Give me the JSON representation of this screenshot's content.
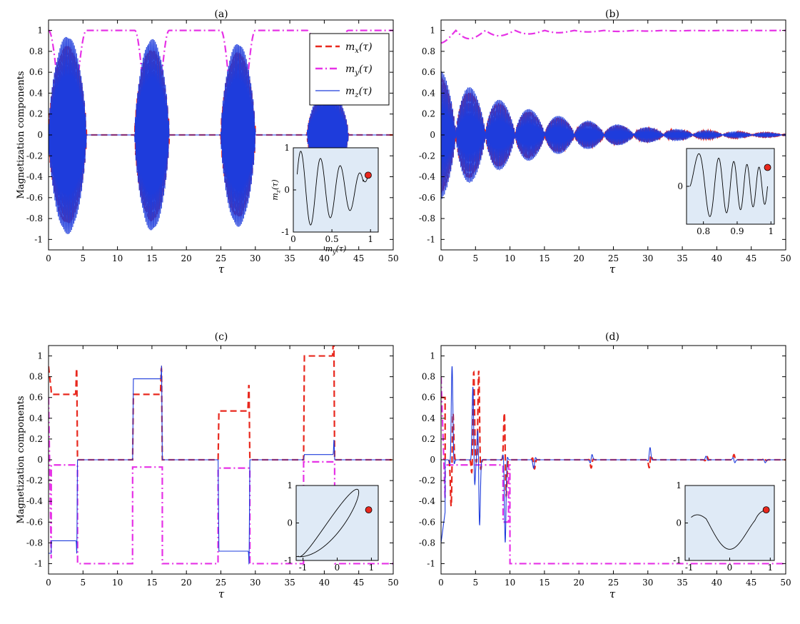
{
  "chart_data": [
    {
      "type": "line",
      "panel_label": "(a)",
      "title": "(a)",
      "xlabel": "τ",
      "ylabel": "Magnetization components",
      "xlim": [
        0,
        50
      ],
      "ylim": [
        -1.1,
        1.1
      ],
      "xticks": [
        0,
        5,
        10,
        15,
        20,
        25,
        30,
        35,
        40,
        45,
        50
      ],
      "yticks": [
        -1,
        -0.8,
        -0.6,
        -0.4,
        -0.2,
        0,
        0.2,
        0.4,
        0.6,
        0.8,
        1
      ],
      "legend": {
        "placement": "top-right",
        "entries": [
          "m_x(τ)",
          "m_y(τ)",
          "m_z(τ)"
        ]
      },
      "series_style": [
        {
          "key": "m_x",
          "color": "#e8281e",
          "dash": "dashed"
        },
        {
          "key": "m_y",
          "color": "#e632e6",
          "dash": "dash-dot"
        },
        {
          "key": "m_z",
          "color": "#1e3cdc",
          "dash": "solid"
        }
      ],
      "bursts": [
        {
          "start": 0,
          "end": 5.5,
          "amp": 0.95
        },
        {
          "start": 12.5,
          "end": 17.5,
          "amp": 0.92
        },
        {
          "start": 25,
          "end": 30,
          "amp": 0.88
        },
        {
          "start": 37.5,
          "end": 43.5,
          "amp": 0.45
        }
      ],
      "m_y_plateau": 1.0,
      "inset": {
        "placement": "bottom-right",
        "xlabel": "m_y(τ)",
        "ylabel": "m_z(τ)",
        "xlim": [
          0,
          1.1
        ],
        "ylim": [
          -1,
          1
        ],
        "xticks": [
          0,
          0.5,
          1
        ],
        "yticks": [
          -1,
          0,
          1
        ],
        "trajectory": "spiral converging to (0.97, 0.35)",
        "end_point": [
          0.97,
          0.35
        ]
      }
    },
    {
      "type": "line",
      "panel_label": "(b)",
      "title": "(b)",
      "xlabel": "τ",
      "ylabel": "",
      "xlim": [
        0,
        50
      ],
      "ylim": [
        -1.1,
        1.1
      ],
      "xticks": [
        0,
        5,
        10,
        15,
        20,
        25,
        30,
        35,
        40,
        45,
        50
      ],
      "yticks": [
        -1,
        -0.8,
        -0.6,
        -0.4,
        -0.2,
        0,
        0.2,
        0.4,
        0.6,
        0.8,
        1
      ],
      "series_style": [
        {
          "key": "m_x",
          "color": "#e8281e",
          "dash": "dashed"
        },
        {
          "key": "m_y",
          "color": "#e632e6",
          "dash": "dash-dot"
        },
        {
          "key": "m_z",
          "color": "#1e3cdc",
          "dash": "solid"
        }
      ],
      "description": "damped oscillations, envelope decays from ~0.65 at τ=0 to ~0 at τ=50; m_y stays near 0.9–1.0",
      "inset": {
        "placement": "bottom-right",
        "xlim": [
          0.75,
          1.01
        ],
        "ylim": [
          -0.6,
          0.6
        ],
        "xticks": [
          0.8,
          0.9,
          1
        ],
        "yticks": [
          0
        ],
        "end_point": [
          0.99,
          0.3
        ]
      }
    },
    {
      "type": "line",
      "panel_label": "(c)",
      "title": "(c)",
      "xlabel": "τ",
      "ylabel": "Magnetization components",
      "xlim": [
        0,
        50
      ],
      "ylim": [
        -1.1,
        1.1
      ],
      "xticks": [
        0,
        5,
        10,
        15,
        20,
        25,
        30,
        35,
        40,
        45,
        50
      ],
      "yticks": [
        -1,
        -0.8,
        -0.6,
        -0.4,
        -0.2,
        0,
        0.2,
        0.4,
        0.6,
        0.8,
        1
      ],
      "series_style": [
        {
          "key": "m_x",
          "color": "#e8281e",
          "dash": "dashed"
        },
        {
          "key": "m_y",
          "color": "#e632e6",
          "dash": "dash-dot"
        },
        {
          "key": "m_z",
          "color": "#1e3cdc",
          "dash": "solid"
        }
      ],
      "pulses": [
        {
          "start": 0,
          "end": 4.2,
          "mx": 0.63,
          "mz": -0.78,
          "my": -0.05
        },
        {
          "start": 12.2,
          "end": 16.5,
          "mx": 0.63,
          "mz": 0.78,
          "my": -0.07
        },
        {
          "start": 24.6,
          "end": 29.2,
          "mx": 0.47,
          "mz": -0.88,
          "my": -0.08
        },
        {
          "start": 37.0,
          "end": 41.5,
          "mx": 1.0,
          "mz": 0.05,
          "my": -0.02
        }
      ],
      "m_y_plateau": -1.0,
      "inset": {
        "placement": "bottom-right",
        "xlim": [
          -1.2,
          1.2
        ],
        "ylim": [
          -1,
          1
        ],
        "xticks": [
          -1,
          0,
          1
        ],
        "yticks": [
          -1,
          0,
          1
        ],
        "end_point": [
          0.92,
          0.35
        ]
      }
    },
    {
      "type": "line",
      "panel_label": "(d)",
      "title": "(d)",
      "xlabel": "τ",
      "ylabel": "",
      "xlim": [
        0,
        50
      ],
      "ylim": [
        -1.1,
        1.1
      ],
      "xticks": [
        0,
        5,
        10,
        15,
        20,
        25,
        30,
        35,
        40,
        45,
        50
      ],
      "yticks": [
        -1,
        -0.8,
        -0.6,
        -0.4,
        -0.2,
        0,
        0.2,
        0.4,
        0.6,
        0.8,
        1
      ],
      "series_style": [
        {
          "key": "m_x",
          "color": "#e8281e",
          "dash": "dashed"
        },
        {
          "key": "m_y",
          "color": "#e632e6",
          "dash": "dash-dot"
        },
        {
          "key": "m_z",
          "color": "#1e3cdc",
          "dash": "solid"
        }
      ],
      "spikes": [
        {
          "t": 1.6,
          "amp": 0.9
        },
        {
          "t": 4.7,
          "amp": 0.92
        },
        {
          "t": 5.5,
          "amp": 0.9
        },
        {
          "t": 9.3,
          "amp": 0.8
        },
        {
          "t": 13.5,
          "amp": 0.1
        },
        {
          "t": 21.8,
          "amp": 0.08
        },
        {
          "t": 30.3,
          "amp": 0.12
        },
        {
          "t": 38.5,
          "amp": 0.04
        },
        {
          "t": 42.5,
          "amp": 0.05
        },
        {
          "t": 47.0,
          "amp": 0.03
        }
      ],
      "m_y_plateau": -1.0,
      "inset": {
        "placement": "bottom-right",
        "xlim": [
          -1.1,
          1.1
        ],
        "ylim": [
          -1,
          1
        ],
        "xticks": [
          -1,
          0,
          1
        ],
        "yticks": [
          -1,
          0,
          1
        ],
        "end_point": [
          0.9,
          0.35
        ]
      }
    }
  ]
}
